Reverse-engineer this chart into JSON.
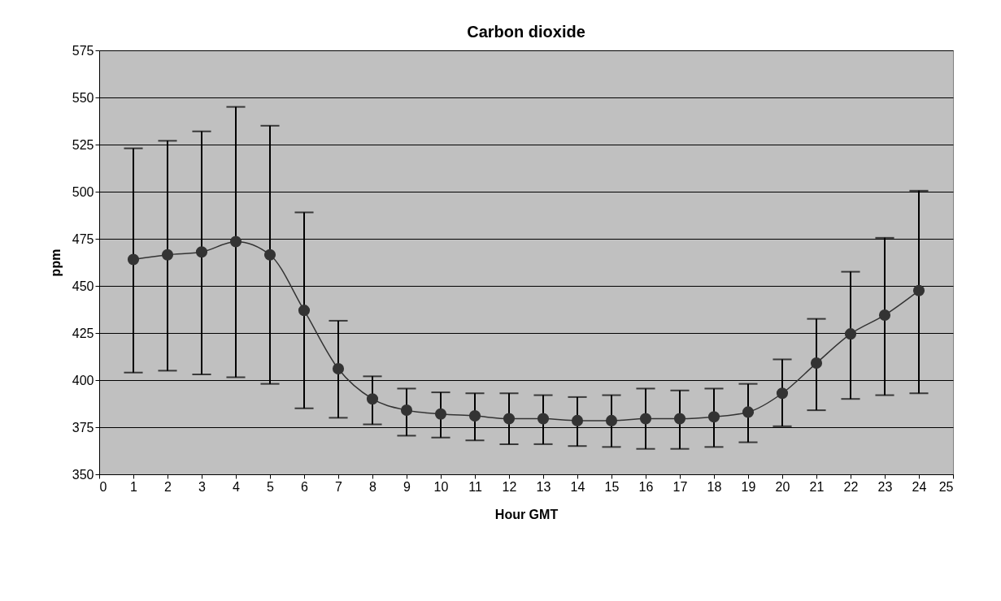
{
  "chart_data": {
    "type": "line",
    "title": "Carbon dioxide",
    "xlabel": "Hour GMT",
    "ylabel": "ppm",
    "x": [
      1,
      2,
      3,
      4,
      5,
      6,
      7,
      8,
      9,
      10,
      11,
      12,
      13,
      14,
      15,
      16,
      17,
      18,
      19,
      20,
      21,
      22,
      23,
      24
    ],
    "series": [
      {
        "color": "#333333",
        "values": [
          464,
          466.5,
          468,
          473.5,
          466.5,
          437,
          406,
          390,
          384,
          382,
          381,
          379.5,
          379.5,
          378.5,
          378.5,
          379.5,
          379.5,
          380.5,
          383,
          393,
          409,
          424.5,
          434.5,
          447.5
        ],
        "errors": [
          [
            404,
            523
          ],
          [
            405,
            527
          ],
          [
            403,
            532
          ],
          [
            401.5,
            545
          ],
          [
            398,
            535
          ],
          [
            385,
            489
          ],
          [
            380,
            431.5
          ],
          [
            376.5,
            402
          ],
          [
            370.5,
            395.5
          ],
          [
            369.5,
            393.5
          ],
          [
            368,
            393
          ],
          [
            366,
            393
          ],
          [
            366,
            392
          ],
          [
            365,
            391
          ],
          [
            364.5,
            392
          ],
          [
            363.5,
            395.5
          ],
          [
            363.5,
            394.5
          ],
          [
            364.5,
            395.5
          ],
          [
            367,
            398
          ],
          [
            375.5,
            411
          ],
          [
            384,
            432.5
          ],
          [
            390,
            457.5
          ],
          [
            392,
            475.5
          ],
          [
            393,
            500.5
          ]
        ]
      }
    ],
    "xlim": [
      0,
      25
    ],
    "xticks": [
      0,
      1,
      2,
      3,
      4,
      5,
      6,
      7,
      8,
      9,
      10,
      11,
      12,
      13,
      14,
      15,
      16,
      17,
      18,
      19,
      20,
      21,
      22,
      23,
      24,
      25
    ],
    "ylim": [
      350,
      575
    ],
    "yticks": [
      350,
      375,
      400,
      425,
      450,
      475,
      500,
      525,
      550,
      575
    ],
    "grid": "y",
    "marker": "circle",
    "line_style": "solid"
  }
}
